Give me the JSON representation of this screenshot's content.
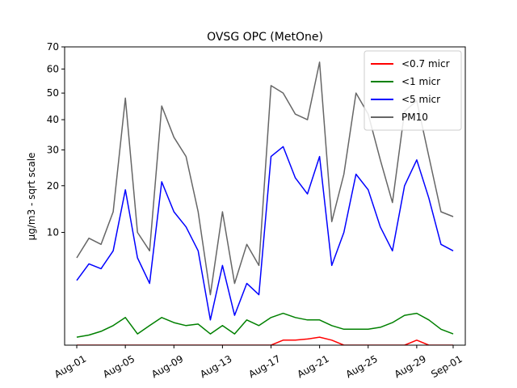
{
  "chart_data": {
    "type": "line",
    "title": "OVSG OPC (MetOne)",
    "xlabel": "",
    "ylabel": "µg/m3 - sqrt scale",
    "y_scale": "sqrt",
    "ylim": [
      0,
      70
    ],
    "yticks": [
      10,
      20,
      30,
      40,
      50,
      60,
      70
    ],
    "xlim": [
      "2023-07-31",
      "2023-09-02"
    ],
    "xticks": [
      "Aug-01",
      "Aug-05",
      "Aug-09",
      "Aug-13",
      "Aug-17",
      "Aug-21",
      "Aug-25",
      "Aug-29",
      "Sep-01"
    ],
    "xtick_dates": [
      "2023-08-01",
      "2023-08-05",
      "2023-08-09",
      "2023-08-13",
      "2023-08-17",
      "2023-08-21",
      "2023-08-25",
      "2023-08-29",
      "2023-09-01"
    ],
    "legend_position": "top-right",
    "grid": false,
    "x": [
      "2023-08-01",
      "2023-08-02",
      "2023-08-03",
      "2023-08-04",
      "2023-08-05",
      "2023-08-06",
      "2023-08-07",
      "2023-08-08",
      "2023-08-09",
      "2023-08-10",
      "2023-08-11",
      "2023-08-12",
      "2023-08-13",
      "2023-08-14",
      "2023-08-15",
      "2023-08-16",
      "2023-08-17",
      "2023-08-18",
      "2023-08-19",
      "2023-08-20",
      "2023-08-21",
      "2023-08-22",
      "2023-08-23",
      "2023-08-24",
      "2023-08-25",
      "2023-08-26",
      "2023-08-27",
      "2023-08-28",
      "2023-08-29",
      "2023-08-30",
      "2023-08-31",
      "2023-09-01"
    ],
    "series": [
      {
        "name": "<0.7 micr",
        "color": "#ff0000",
        "values": [
          0.0,
          0.0,
          0.0,
          0.0,
          0.0,
          0.0,
          0.0,
          0.0,
          0.0,
          0.0,
          0.0,
          0.0,
          0.0,
          0.0,
          0.0,
          0.0,
          0.0,
          0.02,
          0.02,
          0.03,
          0.05,
          0.02,
          0.0,
          0.0,
          0.0,
          0.0,
          0.0,
          0.0,
          0.02,
          0.0,
          0.0,
          0.0
        ]
      },
      {
        "name": "<1 micr",
        "color": "#008000",
        "values": [
          0.05,
          0.08,
          0.15,
          0.3,
          0.6,
          0.1,
          0.3,
          0.6,
          0.4,
          0.3,
          0.35,
          0.1,
          0.3,
          0.1,
          0.5,
          0.3,
          0.6,
          0.8,
          0.6,
          0.5,
          0.5,
          0.3,
          0.2,
          0.2,
          0.2,
          0.25,
          0.4,
          0.7,
          0.8,
          0.5,
          0.2,
          0.1
        ]
      },
      {
        "name": "<5 micr",
        "color": "#0000ff",
        "values": [
          3.3,
          5.2,
          4.6,
          7.0,
          19.0,
          6.0,
          3.0,
          21.0,
          14.0,
          11.0,
          7.0,
          0.5,
          5.0,
          0.7,
          3.0,
          2.0,
          28.0,
          31.0,
          22.0,
          18.0,
          28.0,
          5.0,
          10.0,
          23.0,
          19.0,
          11.0,
          7.0,
          20.0,
          27.0,
          17.0,
          8.0,
          7.0
        ]
      },
      {
        "name": "PM10",
        "color": "#666666",
        "values": [
          6.0,
          9.0,
          8.0,
          14.0,
          48.0,
          10.0,
          7.0,
          45.0,
          34.0,
          28.0,
          14.0,
          2.0,
          14.0,
          3.0,
          8.0,
          5.0,
          53.0,
          50.0,
          42.0,
          40.0,
          63.0,
          12.0,
          23.0,
          50.0,
          42.0,
          27.0,
          16.0,
          43.0,
          47.0,
          28.0,
          14.0,
          13.0
        ]
      }
    ]
  }
}
